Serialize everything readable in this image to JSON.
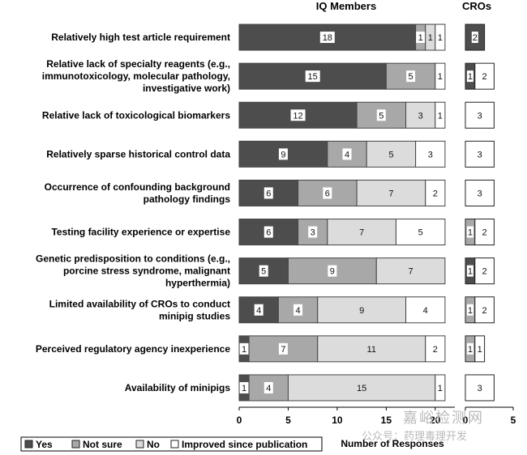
{
  "colors": {
    "yes": "#4d4d4d",
    "not_sure": "#a8a8a8",
    "no": "#dcdcdc",
    "improved": "#ffffff",
    "border": "#444444"
  },
  "watermark": {
    "top": "嘉峪检测网",
    "bottom": "公众号：药理毒理开发"
  },
  "chart_data": {
    "type": "bar",
    "orientation": "horizontal",
    "stacked": true,
    "title": "IQ Members",
    "xlabel": "Number of Responses",
    "xlim": [
      0,
      22
    ],
    "xticks": [
      0,
      5,
      10,
      15,
      20
    ],
    "categories": [
      [
        "Relatively high test article requirement"
      ],
      [
        "Relative lack of specialty reagents (e.g.,",
        "immunotoxicology, molecular pathology,",
        "investigative work)"
      ],
      [
        "Relative lack of toxicological biomarkers"
      ],
      [
        "Relatively sparse historical control data"
      ],
      [
        "Occurrence of confounding background",
        "pathology findings"
      ],
      [
        "Testing facility experience or expertise"
      ],
      [
        "Genetic predisposition to conditions (e.g.,",
        "porcine stress syndrome, malignant",
        "hyperthermia)"
      ],
      [
        "Limited availability of CROs to conduct",
        "minipig studies"
      ],
      [
        "Perceived regulatory agency inexperience"
      ],
      [
        "Availability of minipigs"
      ]
    ],
    "legend": [
      "Yes",
      "Not sure",
      "No",
      "Improved since publication"
    ],
    "series": [
      {
        "name": "Yes",
        "values": [
          18,
          15,
          12,
          9,
          6,
          6,
          5,
          4,
          1,
          1
        ]
      },
      {
        "name": "Not sure",
        "values": [
          1,
          5,
          5,
          4,
          6,
          3,
          9,
          4,
          7,
          4
        ]
      },
      {
        "name": "No",
        "values": [
          1,
          0,
          3,
          5,
          7,
          7,
          7,
          9,
          11,
          15
        ]
      },
      {
        "name": "Improved since publication",
        "values": [
          1,
          1,
          1,
          3,
          2,
          5,
          0,
          4,
          2,
          1
        ]
      }
    ],
    "cro_panel": {
      "title": "CROs",
      "xlim": [
        0,
        5
      ],
      "xticks": [
        0,
        5
      ],
      "series": [
        {
          "name": "Yes",
          "values": [
            2,
            1,
            0,
            0,
            0,
            0,
            1,
            0,
            0,
            0
          ]
        },
        {
          "name": "Not sure",
          "values": [
            0,
            0,
            0,
            0,
            0,
            1,
            0,
            1,
            1,
            0
          ]
        },
        {
          "name": "No",
          "values": [
            0,
            0,
            0,
            0,
            0,
            0,
            0,
            0,
            0,
            0
          ]
        },
        {
          "name": "Improved since publication",
          "values": [
            0,
            2,
            3,
            3,
            3,
            2,
            2,
            2,
            1,
            3
          ]
        }
      ]
    }
  }
}
